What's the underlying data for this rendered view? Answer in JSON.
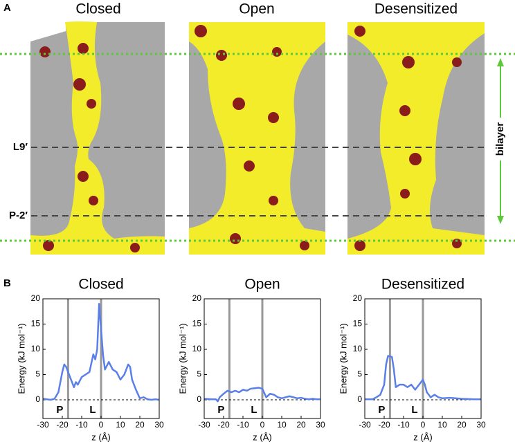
{
  "panel_a": {
    "letter": "A",
    "titles": [
      "Closed",
      "Open",
      "Desensitized"
    ],
    "levels": [
      "L9′",
      "P-2′"
    ],
    "bracket": "bilayer"
  },
  "panel_b": {
    "letter": "B"
  },
  "chart_data": [
    {
      "type": "line",
      "title": "Closed",
      "xlabel": "z (Å)",
      "ylabel": "Energy (kJ mol⁻¹)",
      "xlim": [
        -30,
        30
      ],
      "ylim": [
        -3.7,
        20
      ],
      "xticks": [
        -30,
        -20,
        -10,
        0,
        10,
        20,
        30
      ],
      "yticks": [
        0,
        5,
        10,
        15,
        20
      ],
      "annotations": [
        {
          "label": "P",
          "x": -17
        },
        {
          "label": "L",
          "x": 0
        }
      ],
      "x": [
        -30,
        -28,
        -26,
        -24,
        -22,
        -20,
        -19,
        -18,
        -16,
        -14,
        -13,
        -12,
        -10,
        -8,
        -6,
        -4,
        -3,
        -2,
        -1,
        0,
        1,
        2,
        4,
        6,
        8,
        10,
        12,
        14,
        15,
        16,
        18,
        20,
        22,
        24,
        26,
        28,
        30
      ],
      "series": [
        {
          "name": "Closed",
          "color": "#5b7fe8",
          "values": [
            0.2,
            0.1,
            0,
            0.2,
            1.5,
            5.5,
            7,
            6.5,
            4.5,
            2.5,
            3.5,
            3,
            4.5,
            5,
            5.5,
            9,
            8,
            10,
            19,
            14,
            9,
            6,
            7.5,
            6,
            5.5,
            4,
            5,
            7,
            6.5,
            4,
            2,
            0.3,
            0.5,
            0.1,
            0,
            0.1,
            0
          ]
        }
      ]
    },
    {
      "type": "line",
      "title": "Open",
      "xlabel": "z (Å)",
      "ylabel": "Energy (kJ mol⁻¹)",
      "xlim": [
        -30,
        30
      ],
      "ylim": [
        -3.7,
        20
      ],
      "xticks": [
        -30,
        -20,
        -10,
        0,
        10,
        20,
        30
      ],
      "yticks": [
        0,
        5,
        10,
        15,
        20
      ],
      "annotations": [
        {
          "label": "P",
          "x": -17
        },
        {
          "label": "L",
          "x": 0
        }
      ],
      "x": [
        -30,
        -26,
        -24,
        -23,
        -22,
        -20,
        -18,
        -16,
        -14,
        -12,
        -10,
        -8,
        -6,
        -4,
        -2,
        0,
        2,
        4,
        6,
        8,
        10,
        12,
        14,
        16,
        18,
        20,
        22,
        24,
        26,
        28,
        30
      ],
      "series": [
        {
          "name": "Open",
          "color": "#5b7fe8",
          "values": [
            0.2,
            0.1,
            0.1,
            -0.3,
            0.5,
            1.2,
            1.8,
            1.5,
            1.8,
            1.5,
            2,
            1.8,
            2.2,
            2.3,
            2.4,
            2.2,
            0.5,
            1.2,
            1,
            0.5,
            0.3,
            0.5,
            0.7,
            0.5,
            0.3,
            0.4,
            0.2,
            0.1,
            0.2,
            0.1,
            0.1
          ]
        }
      ]
    },
    {
      "type": "line",
      "title": "Desensitized",
      "xlabel": "z (Å)",
      "ylabel": "Energy (kJ mol⁻¹)",
      "xlim": [
        -30,
        30
      ],
      "ylim": [
        -3.7,
        20
      ],
      "xticks": [
        -30,
        -20,
        -10,
        0,
        10,
        20,
        30
      ],
      "yticks": [
        0,
        5,
        10,
        15,
        20
      ],
      "annotations": [
        {
          "label": "P",
          "x": -17
        },
        {
          "label": "L",
          "x": 0
        }
      ],
      "x": [
        -30,
        -26,
        -24,
        -22,
        -20,
        -19,
        -18,
        -16,
        -15,
        -14,
        -12,
        -10,
        -8,
        -6,
        -4,
        -2,
        0,
        1,
        2,
        4,
        6,
        8,
        10,
        14,
        20,
        26,
        30
      ],
      "series": [
        {
          "name": "Desensitized",
          "color": "#5b7fe8",
          "values": [
            0.1,
            0.1,
            0.5,
            1,
            3,
            7,
            8.7,
            8.5,
            6,
            2.5,
            3,
            3,
            2.5,
            3,
            2,
            3,
            4,
            3,
            1.5,
            0.5,
            1,
            0.5,
            0.3,
            0.4,
            0.2,
            0.1,
            0.1
          ]
        }
      ]
    }
  ]
}
